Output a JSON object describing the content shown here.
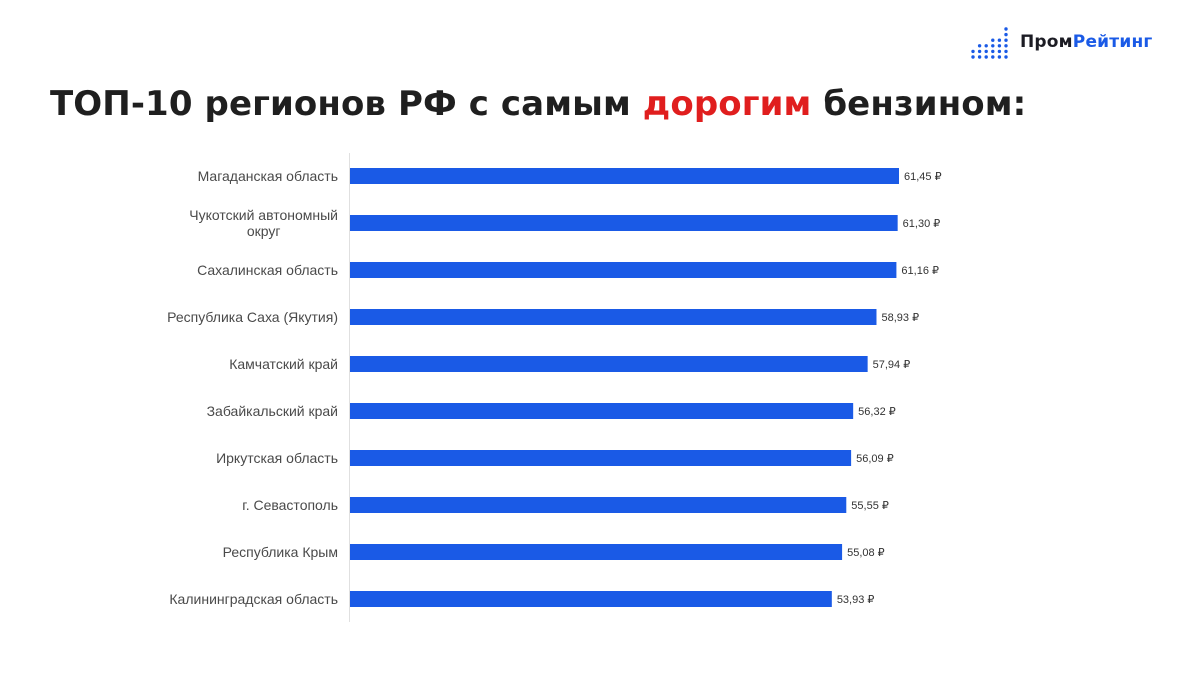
{
  "logo": {
    "icon": "dot-matrix-logo-icon",
    "part1": "Пром",
    "part2": "Рейтинг"
  },
  "title": {
    "before": "ТОП-10 регионов РФ с самым ",
    "accent": "дорогим",
    "after": " бензином:"
  },
  "colors": {
    "bar": "#1a5ae6",
    "accent": "#e01e1e",
    "axis": "#e0e0e0"
  },
  "chart_data": {
    "type": "bar",
    "orientation": "horizontal",
    "title": "ТОП-10 регионов РФ с самым дорогим бензином:",
    "categories": [
      "Магаданская область",
      "Чукотский автономный округ",
      "Сахалинская область",
      "Республика Саха (Якутия)",
      "Камчатский край",
      "Забайкальский край",
      "Иркутская область",
      "г. Севастополь",
      "Республика Крым",
      "Калининградская область"
    ],
    "category_lines": [
      [
        "Магаданская область"
      ],
      [
        "Чукотский автономный",
        "округ"
      ],
      [
        "Сахалинская область"
      ],
      [
        "Республика Саха (Якутия)"
      ],
      [
        "Камчатский край"
      ],
      [
        "Забайкальский край"
      ],
      [
        "Иркутская область"
      ],
      [
        "г. Севастополь"
      ],
      [
        "Республика Крым"
      ],
      [
        "Калининградская область"
      ]
    ],
    "values": [
      61.45,
      61.3,
      61.16,
      58.93,
      57.94,
      56.32,
      56.09,
      55.55,
      55.08,
      53.93
    ],
    "value_labels": [
      "61,45 ₽",
      "61,30 ₽",
      "61,16 ₽",
      "58,93 ₽",
      "57,94 ₽",
      "56,32 ₽",
      "56,09 ₽",
      "55,55 ₽",
      "55,08 ₽",
      "53,93 ₽"
    ],
    "xlabel": "",
    "ylabel": "",
    "grid": false,
    "legend": "none"
  }
}
